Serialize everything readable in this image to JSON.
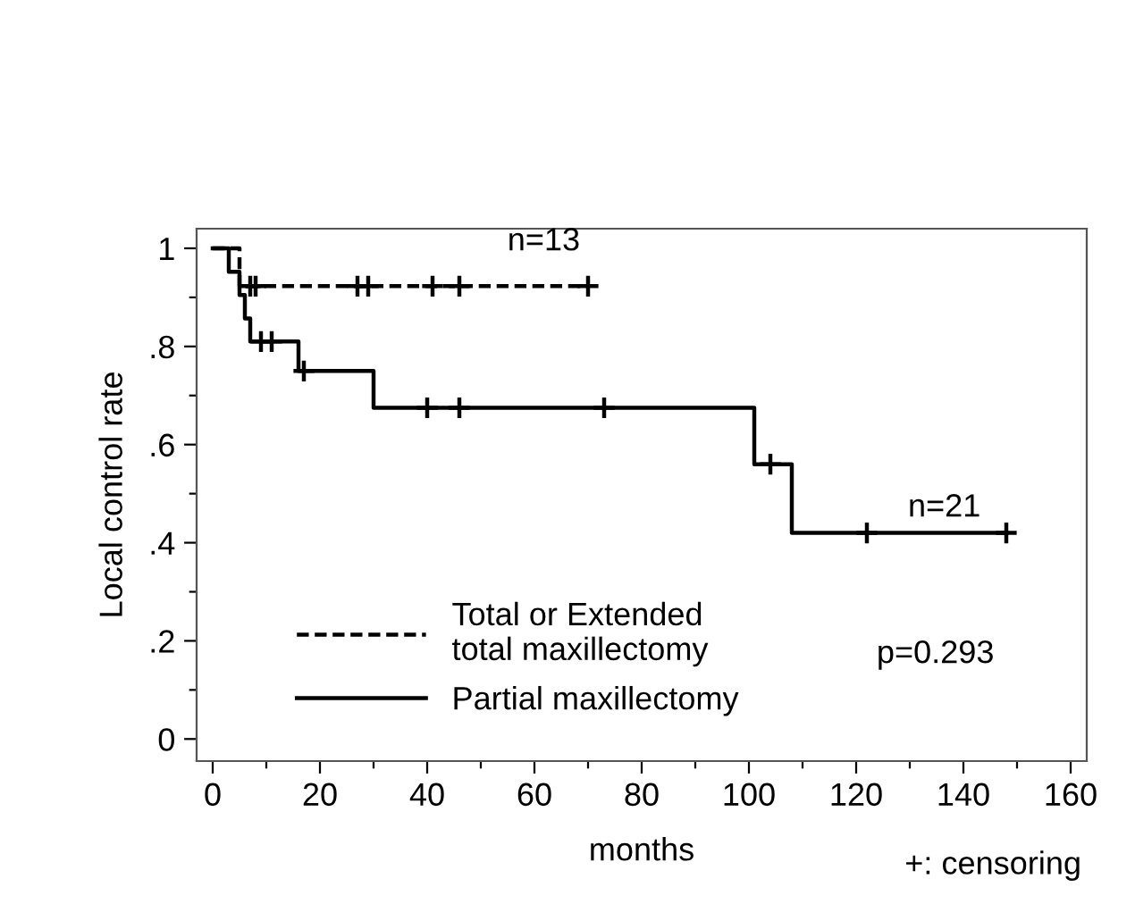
{
  "chart_data": {
    "type": "step",
    "xlabel": "months",
    "ylabel": "Local control rate",
    "xlim": [
      -3,
      163
    ],
    "ylim": [
      -0.045,
      1.04
    ],
    "xticks": [
      0,
      {
        "value": 10,
        "label": null
      },
      20,
      {
        "value": 30,
        "label": null
      },
      40,
      {
        "value": 50,
        "label": null
      },
      60,
      {
        "value": 70,
        "label": null
      },
      80,
      {
        "value": 90,
        "label": null
      },
      100,
      {
        "value": 110,
        "label": null
      },
      120,
      {
        "value": 130,
        "label": null
      },
      140,
      {
        "value": 150,
        "label": null
      },
      160
    ],
    "yticks": [
      0,
      {
        "value": 0.1,
        "label": null
      },
      {
        "value": 0.2,
        "label": ".2"
      },
      {
        "value": 0.3,
        "label": null
      },
      {
        "value": 0.4,
        "label": ".4"
      },
      {
        "value": 0.5,
        "label": null
      },
      {
        "value": 0.6,
        "label": ".6"
      },
      {
        "value": 0.7,
        "label": null
      },
      {
        "value": 0.8,
        "label": ".8"
      },
      {
        "value": 0.9,
        "label": null
      },
      1
    ],
    "grid": false,
    "legend": "bottom left",
    "series": [
      {
        "name": "Total or Extended\ntotal maxillectomy",
        "color": "#000000",
        "line_style": "dashed",
        "x": [
          0,
          5,
          70
        ],
        "values": [
          1,
          0.923,
          0.923
        ]
      },
      {
        "name": "Partial maxillectomy",
        "color": "#000000",
        "line_style": "solid",
        "x": [
          0,
          3,
          5,
          6,
          7,
          16,
          30,
          101,
          108,
          148
        ],
        "values": [
          1,
          0.952,
          0.905,
          0.857,
          0.81,
          0.75,
          0.675,
          0.56,
          0.42,
          0.42
        ]
      },
      {
        "type": "scatter",
        "marker": "cross",
        "color": "#000000",
        "x": [
          7,
          8,
          27,
          29,
          41,
          46,
          70
        ],
        "values": [
          0.923,
          0.923,
          0.923,
          0.923,
          0.923,
          0.923,
          0.923
        ]
      },
      {
        "type": "scatter",
        "marker": "cross",
        "color": "#000000",
        "x": [
          9,
          11,
          17,
          40,
          46,
          73,
          104,
          122,
          148
        ],
        "values": [
          0.81,
          0.81,
          0.75,
          0.675,
          0.675,
          0.675,
          0.56,
          0.42,
          0.42
        ]
      }
    ],
    "annotations": [
      "n=13",
      "n=21",
      "p=0.293",
      "+: censoring"
    ]
  }
}
